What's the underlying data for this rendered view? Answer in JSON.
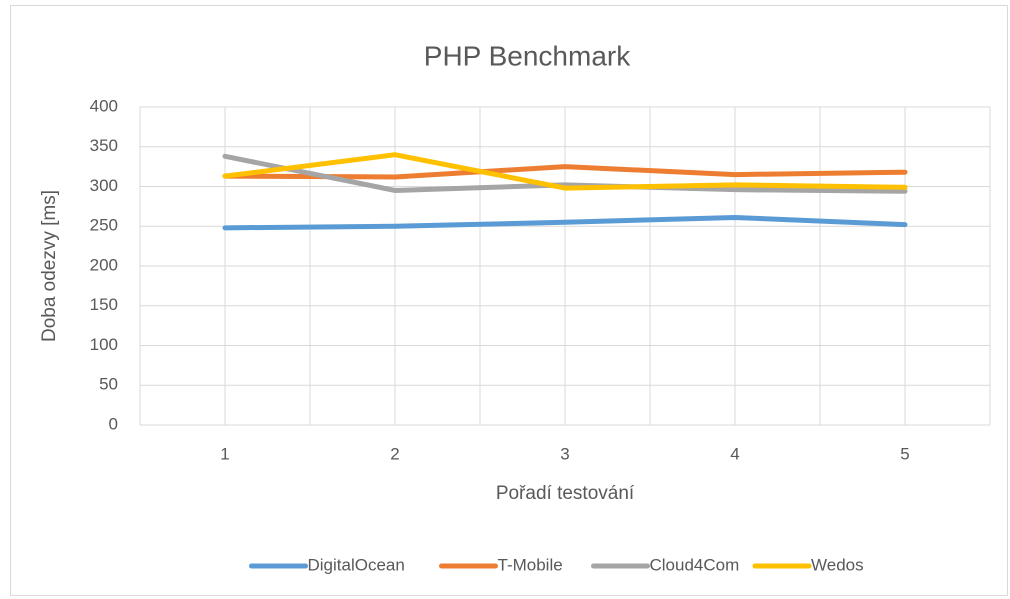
{
  "chart_data": {
    "type": "line",
    "title": "PHP Benchmark",
    "x_label": "Pořadí testování",
    "y_label": "Doba odezvy [ms]",
    "categories": [
      "1",
      "2",
      "3",
      "4",
      "5"
    ],
    "series": [
      {
        "name": "DigitalOcean",
        "color": "#5b9bd5",
        "values": [
          248,
          250,
          255,
          261,
          252
        ]
      },
      {
        "name": "T-Mobile",
        "color": "#ed7d31",
        "values": [
          313,
          312,
          325,
          315,
          318
        ]
      },
      {
        "name": "Cloud4Com",
        "color": "#a5a5a5",
        "values": [
          338,
          295,
          302,
          296,
          294
        ]
      },
      {
        "name": "Wedos",
        "color": "#ffc000",
        "values": [
          313,
          340,
          298,
          302,
          299
        ]
      }
    ],
    "ylim": [
      0,
      400
    ],
    "yticks": [
      0,
      50,
      100,
      150,
      200,
      250,
      300,
      350,
      400
    ],
    "grid": true,
    "legend": "bottom"
  }
}
